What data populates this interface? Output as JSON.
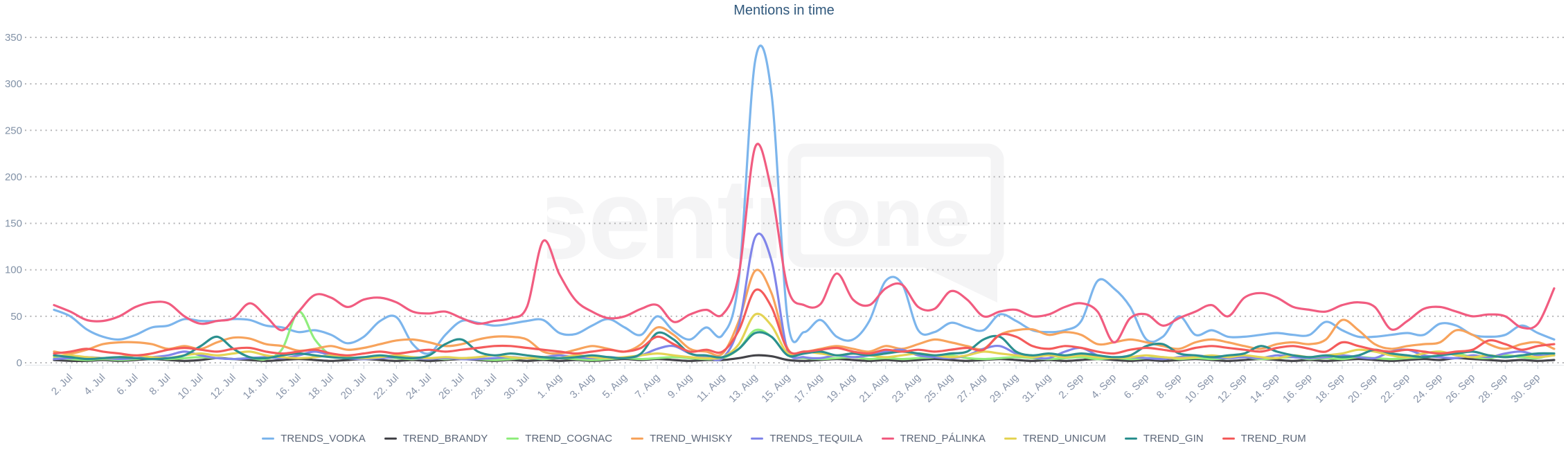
{
  "page": {
    "background": "#ffffff"
  },
  "chart_data": {
    "type": "line",
    "title": "Mentions in time",
    "title_color": "#30587c",
    "ylabel": "",
    "xlabel": "",
    "ylim": [
      0,
      350
    ],
    "y_ticks": [
      0,
      50,
      100,
      150,
      200,
      250,
      300,
      350
    ],
    "grid": "horizontal dotted",
    "legend_position": "bottom-center",
    "x_total_days": 93,
    "x_start_date": "1. Jul",
    "x_end_date": "1. Oct",
    "x_tick_labels": [
      "2. Jul",
      "4. Jul",
      "6. Jul",
      "8. Jul",
      "10. Jul",
      "12. Jul",
      "14. Jul",
      "16. Jul",
      "18. Jul",
      "20. Jul",
      "22. Jul",
      "24. Jul",
      "26. Jul",
      "28. Jul",
      "30. Jul",
      "1. Aug",
      "3. Aug",
      "5. Aug",
      "7. Aug",
      "9. Aug",
      "11. Aug",
      "13. Aug",
      "15. Aug",
      "17. Aug",
      "19. Aug",
      "21. Aug",
      "23. Aug",
      "25. Aug",
      "27. Aug",
      "29. Aug",
      "31. Aug",
      "2. Sep",
      "4. Sep",
      "6. Sep",
      "8. Sep",
      "10. Sep",
      "12. Sep",
      "14. Sep",
      "16. Sep",
      "18. Sep",
      "20. Sep",
      "22. Sep",
      "24. Sep",
      "26. Sep",
      "28. Sep",
      "30. Sep"
    ],
    "watermark": {
      "text_left": "senti",
      "text_boxed": "one",
      "color": "#f4f4f5"
    },
    "series": [
      {
        "name": "TRENDS_VODKA",
        "color": "#7cb5ec",
        "values": [
          57,
          50,
          36,
          28,
          25,
          30,
          38,
          40,
          47,
          45,
          45,
          47,
          46,
          40,
          38,
          33,
          35,
          30,
          21,
          28,
          45,
          49,
          20,
          10,
          30,
          45,
          43,
          40,
          42,
          45,
          46,
          32,
          31,
          40,
          47,
          38,
          30,
          50,
          34,
          25,
          38,
          30,
          90,
          325,
          290,
          45,
          33,
          46,
          28,
          25,
          45,
          88,
          85,
          35,
          33,
          43,
          38,
          35,
          52,
          45,
          35,
          33,
          35,
          45,
          88,
          80,
          60,
          25,
          28,
          50,
          30,
          35,
          28,
          28,
          30,
          32,
          30,
          30,
          44,
          35,
          28,
          28,
          30,
          32,
          30,
          42,
          40,
          30,
          28,
          30,
          40,
          32,
          25
        ]
      },
      {
        "name": "TREND_BRANDY",
        "color": "#434348",
        "values": [
          3,
          2,
          2,
          3,
          2,
          3,
          4,
          3,
          2,
          3,
          5,
          4,
          3,
          2,
          3,
          4,
          3,
          2,
          3,
          4,
          3,
          2,
          3,
          2,
          3,
          4,
          3,
          2,
          3,
          2,
          3,
          2,
          3,
          2,
          3,
          4,
          3,
          4,
          3,
          2,
          3,
          3,
          5,
          8,
          7,
          3,
          2,
          3,
          4,
          3,
          2,
          3,
          2,
          3,
          4,
          3,
          2,
          3,
          4,
          3,
          2,
          3,
          2,
          3,
          4,
          3,
          2,
          3,
          2,
          3,
          4,
          3,
          2,
          3,
          4,
          3,
          2,
          3,
          2,
          3,
          4,
          3,
          2,
          3,
          4,
          3,
          5,
          4,
          3,
          2,
          3,
          2,
          3
        ]
      },
      {
        "name": "TREND_COGNAC",
        "color": "#90ed7d",
        "values": [
          5,
          4,
          3,
          4,
          3,
          4,
          5,
          4,
          5,
          6,
          5,
          4,
          5,
          4,
          15,
          55,
          25,
          8,
          5,
          5,
          6,
          5,
          4,
          5,
          4,
          5,
          4,
          3,
          4,
          5,
          4,
          5,
          4,
          3,
          4,
          5,
          4,
          5,
          6,
          5,
          4,
          5,
          15,
          35,
          28,
          8,
          5,
          4,
          5,
          6,
          4,
          5,
          4,
          5,
          6,
          8,
          5,
          4,
          5,
          6,
          5,
          4,
          5,
          6,
          4,
          5,
          4,
          5,
          6,
          4,
          5,
          4,
          5,
          6,
          4,
          5,
          6,
          4,
          5,
          4,
          6,
          5,
          4,
          5,
          6,
          8,
          10,
          6,
          5,
          8,
          6,
          5,
          10
        ]
      },
      {
        "name": "TREND_WHISKY",
        "color": "#f7a35c",
        "values": [
          12,
          10,
          14,
          20,
          22,
          22,
          20,
          15,
          18,
          15,
          22,
          27,
          26,
          20,
          18,
          13,
          15,
          18,
          14,
          16,
          20,
          24,
          25,
          22,
          18,
          20,
          25,
          28,
          28,
          25,
          12,
          10,
          14,
          18,
          15,
          12,
          20,
          38,
          30,
          15,
          12,
          10,
          45,
          99,
          75,
          15,
          12,
          15,
          18,
          15,
          12,
          18,
          15,
          20,
          25,
          22,
          18,
          15,
          30,
          35,
          36,
          30,
          33,
          30,
          20,
          22,
          25,
          22,
          18,
          15,
          22,
          25,
          22,
          18,
          15,
          20,
          22,
          20,
          25,
          46,
          35,
          20,
          15,
          18,
          20,
          22,
          35,
          30,
          20,
          15,
          20,
          22,
          15
        ]
      },
      {
        "name": "TRENDS_TEQUILA",
        "color": "#8085e9",
        "values": [
          4,
          5,
          6,
          5,
          4,
          5,
          6,
          8,
          12,
          8,
          5,
          4,
          5,
          6,
          5,
          8,
          12,
          8,
          5,
          4,
          5,
          6,
          5,
          4,
          5,
          4,
          4,
          5,
          6,
          5,
          6,
          8,
          6,
          5,
          6,
          5,
          8,
          15,
          18,
          10,
          6,
          5,
          40,
          135,
          110,
          12,
          6,
          5,
          8,
          6,
          8,
          12,
          14,
          8,
          6,
          5,
          8,
          15,
          18,
          10,
          6,
          5,
          12,
          16,
          8,
          5,
          6,
          5,
          4,
          6,
          8,
          6,
          5,
          6,
          5,
          8,
          6,
          5,
          6,
          8,
          6,
          5,
          12,
          14,
          8,
          6,
          5,
          8,
          6,
          10,
          12,
          8,
          8
        ]
      },
      {
        "name": "TREND_PÁLINKA",
        "color": "#f15c80",
        "values": [
          62,
          55,
          46,
          45,
          50,
          60,
          65,
          64,
          50,
          42,
          45,
          48,
          64,
          50,
          35,
          55,
          73,
          70,
          60,
          68,
          70,
          65,
          55,
          53,
          55,
          48,
          42,
          45,
          48,
          60,
          131,
          95,
          67,
          55,
          48,
          50,
          58,
          62,
          44,
          52,
          57,
          52,
          95,
          232,
          185,
          80,
          62,
          63,
          96,
          68,
          62,
          80,
          84,
          60,
          58,
          77,
          68,
          50,
          55,
          57,
          50,
          52,
          60,
          64,
          55,
          22,
          48,
          52,
          40,
          48,
          55,
          62,
          50,
          70,
          75,
          70,
          60,
          57,
          55,
          62,
          65,
          60,
          36,
          45,
          58,
          60,
          55,
          50,
          52,
          50,
          38,
          42,
          80
        ]
      },
      {
        "name": "TREND_UNICUM",
        "color": "#e4d354",
        "values": [
          7,
          8,
          6,
          5,
          6,
          8,
          6,
          5,
          8,
          10,
          8,
          10,
          12,
          8,
          6,
          5,
          6,
          8,
          6,
          5,
          6,
          8,
          6,
          5,
          6,
          5,
          6,
          8,
          6,
          5,
          6,
          5,
          8,
          6,
          5,
          6,
          8,
          10,
          8,
          6,
          5,
          6,
          20,
          52,
          40,
          10,
          12,
          10,
          8,
          10,
          8,
          6,
          8,
          10,
          8,
          6,
          8,
          12,
          10,
          8,
          6,
          8,
          6,
          8,
          6,
          5,
          6,
          8,
          6,
          5,
          6,
          8,
          6,
          8,
          6,
          5,
          8,
          6,
          8,
          10,
          14,
          12,
          8,
          6,
          10,
          12,
          8,
          6,
          8,
          6,
          8,
          6,
          8
        ]
      },
      {
        "name": "TREND_GIN",
        "color": "#2b908f",
        "values": [
          8,
          6,
          4,
          5,
          6,
          5,
          4,
          5,
          8,
          18,
          28,
          15,
          6,
          5,
          8,
          10,
          8,
          6,
          5,
          6,
          8,
          6,
          5,
          8,
          20,
          25,
          12,
          8,
          10,
          8,
          6,
          5,
          6,
          8,
          6,
          5,
          10,
          32,
          25,
          10,
          8,
          6,
          15,
          32,
          28,
          8,
          10,
          12,
          8,
          10,
          8,
          10,
          12,
          10,
          8,
          10,
          12,
          25,
          28,
          12,
          8,
          10,
          8,
          10,
          8,
          6,
          8,
          18,
          20,
          10,
          8,
          6,
          8,
          10,
          18,
          12,
          8,
          6,
          8,
          6,
          8,
          14,
          10,
          8,
          6,
          8,
          10,
          12,
          8,
          6,
          8,
          10,
          10
        ]
      },
      {
        "name": "TREND_RUM",
        "color": "#f45b5b",
        "values": [
          10,
          12,
          15,
          12,
          10,
          8,
          10,
          14,
          16,
          14,
          12,
          15,
          16,
          12,
          10,
          12,
          14,
          10,
          8,
          10,
          12,
          10,
          12,
          14,
          12,
          14,
          16,
          18,
          18,
          16,
          14,
          12,
          10,
          12,
          14,
          12,
          16,
          28,
          20,
          12,
          14,
          12,
          35,
          78,
          60,
          14,
          12,
          14,
          16,
          12,
          10,
          14,
          12,
          14,
          12,
          14,
          16,
          14,
          30,
          28,
          18,
          15,
          18,
          16,
          12,
          10,
          14,
          16,
          14,
          12,
          16,
          18,
          16,
          14,
          12,
          16,
          18,
          15,
          12,
          22,
          18,
          14,
          12,
          14,
          12,
          10,
          12,
          14,
          24,
          20,
          14,
          18,
          20
        ]
      }
    ]
  }
}
